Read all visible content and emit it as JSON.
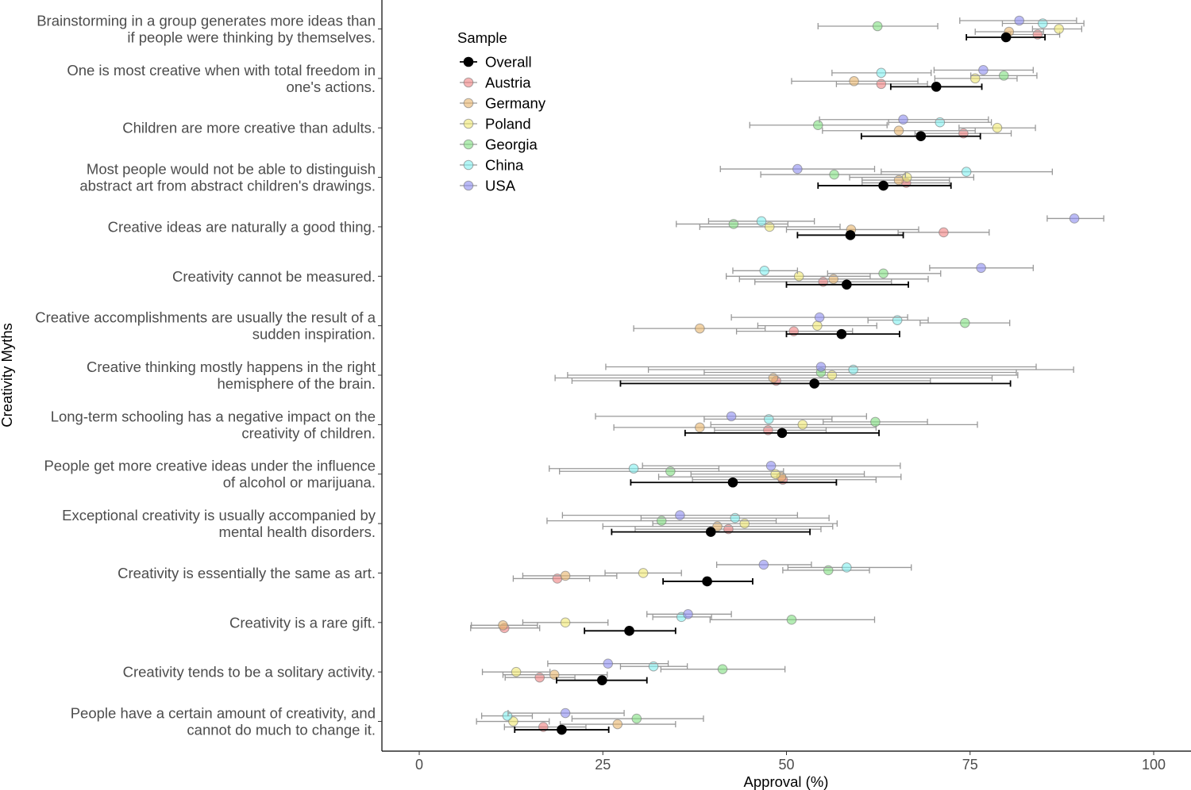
{
  "chart_data": {
    "type": "scatter",
    "subtype": "dot plot with horizontal error bars",
    "xlabel": "Approval (%)",
    "ylabel": "Creativity Myths",
    "xlim": [
      0,
      100
    ],
    "xticks": [
      0,
      25,
      50,
      75,
      100
    ],
    "grid": false,
    "legend": {
      "title": "Sample",
      "placement": "top-left inside plot"
    },
    "categories": [
      [
        "Brainstorming in a group generates more ideas than",
        "if people were thinking by themselves."
      ],
      [
        "One is most creative when with total freedom in",
        "one's actions."
      ],
      [
        "Children are more creative than adults."
      ],
      [
        "Most people would not be able to distinguish",
        "abstract art from abstract children's drawings."
      ],
      [
        "Creative ideas are naturally a good thing."
      ],
      [
        "Creativity cannot be measured."
      ],
      [
        "Creative accomplishments are usually the result of a",
        "sudden inspiration."
      ],
      [
        "Creative thinking mostly happens in the right",
        "hemisphere of the brain."
      ],
      [
        "Long-term schooling has a negative impact on the",
        "creativity of children."
      ],
      [
        "People get more creative ideas under the influence",
        "of alcohol or marijuana."
      ],
      [
        "Exceptional creativity is usually accompanied by",
        "mental health disorders."
      ],
      [
        "Creativity is essentially the same as art."
      ],
      [
        "Creativity is a rare gift."
      ],
      [
        "Creativity tends to be a solitary activity."
      ],
      [
        "People have a certain amount of creativity, and",
        "cannot do much to change it."
      ]
    ],
    "series": [
      {
        "name": "Overall",
        "color": "#000000",
        "values": [
          79.9,
          70.4,
          68.3,
          63.2,
          58.7,
          58.2,
          57.5,
          53.8,
          49.4,
          42.7,
          39.7,
          39.2,
          28.6,
          24.9,
          19.4
        ],
        "lower": [
          74.5,
          64.2,
          60.2,
          54.3,
          51.5,
          50.0,
          50.0,
          27.4,
          36.2,
          28.8,
          26.2,
          33.2,
          22.5,
          18.7,
          13.0
        ],
        "upper": [
          85.2,
          76.6,
          76.4,
          72.4,
          65.9,
          66.6,
          65.4,
          80.5,
          62.6,
          56.8,
          53.2,
          45.4,
          34.9,
          31.0,
          25.8
        ]
      },
      {
        "name": "Austria",
        "color": "#f08080",
        "values": [
          84.2,
          62.9,
          74.1,
          66.3,
          71.4,
          55.0,
          51.0,
          48.6,
          47.5,
          49.5,
          42.1,
          18.8,
          11.6,
          16.4,
          16.9
        ],
        "lower": [
          80.5,
          56.8,
          67.5,
          60.3,
          65.2,
          45.7,
          43.2,
          20.8,
          40.2,
          37.2,
          29.4,
          12.8,
          7.0,
          11.7,
          11.6
        ],
        "upper": [
          87.2,
          69.2,
          80.6,
          72.2,
          77.6,
          64.3,
          59.0,
          69.6,
          55.4,
          62.2,
          54.7,
          23.2,
          16.4,
          21.2,
          22.7
        ]
      },
      {
        "name": "Germany",
        "color": "#e8b46a",
        "values": [
          80.3,
          59.2,
          65.3,
          65.3,
          58.8,
          56.4,
          38.2,
          48.2,
          38.2,
          49.3,
          40.6,
          19.9,
          11.4,
          18.4,
          27.0
        ],
        "lower": [
          75.7,
          50.7,
          54.9,
          60.3,
          50.0,
          43.6,
          29.2,
          18.5,
          26.5,
          32.6,
          25.0,
          14.1,
          7.1,
          11.4,
          19.2
        ],
        "upper": [
          85.0,
          67.9,
          75.7,
          72.2,
          68.0,
          69.3,
          47.1,
          78.0,
          62.2,
          65.6,
          56.3,
          26.9,
          16.1,
          25.6,
          34.9
        ]
      },
      {
        "name": "Poland",
        "color": "#f0e870",
        "values": [
          87.1,
          75.7,
          78.7,
          66.4,
          47.7,
          51.7,
          54.2,
          56.2,
          52.2,
          48.5,
          44.3,
          30.5,
          19.9,
          13.2,
          12.8
        ],
        "lower": [
          83.5,
          70.2,
          73.5,
          58.6,
          38.2,
          41.8,
          46.1,
          20.2,
          39.7,
          37.0,
          31.8,
          25.3,
          14.1,
          8.6,
          7.8
        ],
        "upper": [
          90.2,
          81.4,
          83.9,
          75.5,
          57.3,
          61.4,
          62.3,
          81.5,
          76.0,
          60.6,
          56.9,
          35.7,
          25.7,
          17.8,
          17.7
        ]
      },
      {
        "name": "Georgia",
        "color": "#80e080",
        "values": [
          62.4,
          79.6,
          54.3,
          56.5,
          42.8,
          63.2,
          74.3,
          54.7,
          62.1,
          34.2,
          33.0,
          55.7,
          50.7,
          41.3,
          29.6
        ],
        "lower": [
          54.3,
          75.1,
          45.0,
          46.5,
          35.0,
          55.6,
          68.2,
          38.8,
          55.0,
          19.1,
          17.4,
          49.5,
          39.6,
          32.9,
          20.8
        ],
        "upper": [
          70.6,
          84.1,
          63.7,
          66.2,
          50.2,
          71.0,
          80.4,
          81.3,
          69.2,
          49.6,
          48.6,
          61.3,
          62.0,
          49.8,
          38.7
        ]
      },
      {
        "name": "China",
        "color": "#80f0f0",
        "values": [
          84.9,
          62.9,
          70.9,
          74.5,
          46.6,
          47.0,
          65.1,
          59.1,
          47.6,
          29.2,
          43.0,
          58.2,
          35.7,
          31.9,
          12.0
        ],
        "lower": [
          79.4,
          56.2,
          63.9,
          62.9,
          39.4,
          42.7,
          61.1,
          31.2,
          38.8,
          17.7,
          30.2,
          50.2,
          31.8,
          27.4,
          8.5
        ],
        "upper": [
          90.5,
          69.7,
          77.9,
          86.2,
          53.8,
          51.5,
          69.3,
          89.1,
          56.2,
          40.8,
          55.8,
          67.0,
          39.8,
          36.5,
          15.4
        ]
      },
      {
        "name": "USA",
        "color": "#8c8cf0",
        "values": [
          81.7,
          76.8,
          65.9,
          51.5,
          89.2,
          76.5,
          54.5,
          54.7,
          42.5,
          47.9,
          35.5,
          46.9,
          36.6,
          25.7,
          19.9
        ],
        "lower": [
          73.6,
          70.1,
          54.5,
          41.0,
          85.5,
          69.5,
          42.5,
          25.4,
          24.0,
          30.4,
          19.5,
          40.5,
          31.0,
          17.5,
          12.1
        ],
        "upper": [
          89.5,
          83.6,
          77.5,
          62.0,
          93.2,
          83.6,
          66.5,
          84.0,
          60.9,
          65.5,
          51.5,
          53.4,
          42.5,
          33.9,
          27.9
        ]
      }
    ]
  }
}
